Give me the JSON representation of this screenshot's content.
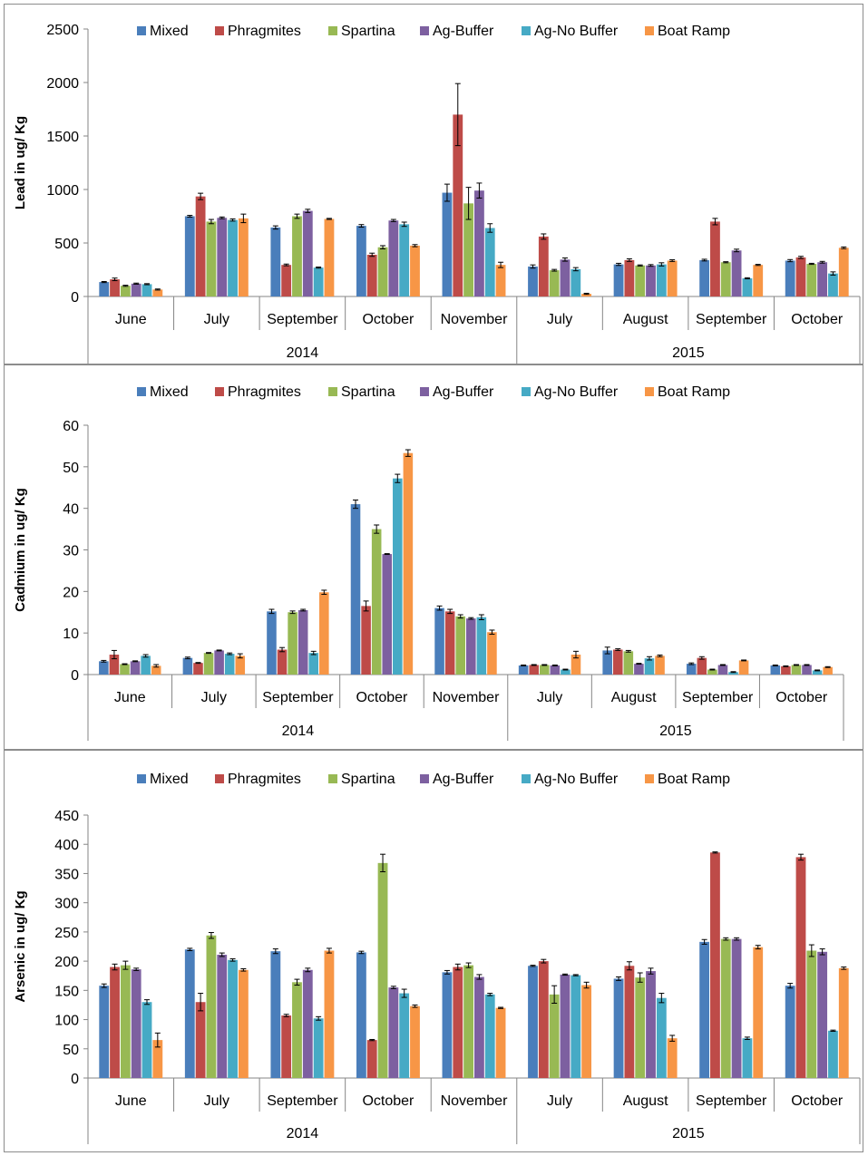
{
  "series_names": [
    "Mixed",
    "Phragmites",
    "Spartina",
    "Ag-Buffer",
    "Ag-No Buffer",
    "Boat Ramp"
  ],
  "series_colors": [
    "#4a7ebb",
    "#be4b48",
    "#98b954",
    "#7d60a0",
    "#46aac5",
    "#f79646"
  ],
  "chart_data": [
    {
      "type": "bar",
      "ylabel": "Lead in ug/ Kg",
      "ylim": [
        0,
        2500
      ],
      "yticks": [
        "0",
        "500",
        "1000",
        "1500",
        "2000",
        "2500"
      ],
      "legend_position": "top",
      "categories": [
        "June",
        "July",
        "September",
        "October",
        "November",
        "July",
        "August",
        "September",
        "October"
      ],
      "groups": [
        {
          "label": "2014",
          "count": 5
        },
        {
          "label": "2015",
          "count": 4
        }
      ],
      "series": [
        {
          "name": "Mixed",
          "values": [
            135,
            750,
            645,
            660,
            970,
            280,
            300,
            340,
            335
          ],
          "errors": [
            5,
            8,
            15,
            12,
            80,
            15,
            10,
            8,
            10
          ]
        },
        {
          "name": "Phragmites",
          "values": [
            160,
            935,
            295,
            390,
            1700,
            560,
            340,
            700,
            365
          ],
          "errors": [
            12,
            30,
            8,
            15,
            290,
            25,
            12,
            30,
            10
          ]
        },
        {
          "name": "Spartina",
          "values": [
            100,
            700,
            750,
            460,
            870,
            245,
            290,
            320,
            305
          ],
          "errors": [
            5,
            20,
            20,
            15,
            150,
            8,
            5,
            5,
            5
          ]
        },
        {
          "name": "Ag-Buffer",
          "values": [
            120,
            735,
            800,
            710,
            990,
            345,
            290,
            430,
            320
          ],
          "errors": [
            5,
            8,
            15,
            10,
            70,
            15,
            8,
            12,
            8
          ]
        },
        {
          "name": "Ag-No Buffer",
          "values": [
            115,
            715,
            270,
            675,
            640,
            255,
            300,
            170,
            215
          ],
          "errors": [
            5,
            10,
            5,
            20,
            40,
            15,
            15,
            5,
            15
          ]
        },
        {
          "name": "Boat Ramp",
          "values": [
            65,
            730,
            725,
            475,
            295,
            25,
            335,
            295,
            455
          ],
          "errors": [
            5,
            40,
            5,
            10,
            25,
            5,
            8,
            5,
            8
          ]
        }
      ]
    },
    {
      "type": "bar",
      "ylabel": "Cadmium in ug/ Kg",
      "ylim": [
        0,
        60
      ],
      "yticks": [
        "0",
        "10",
        "20",
        "30",
        "40",
        "50",
        "60"
      ],
      "legend_position": "top",
      "categories": [
        "June",
        "July",
        "September",
        "October",
        "November",
        "July",
        "August",
        "September",
        "October"
      ],
      "groups": [
        {
          "label": "2014",
          "count": 5
        },
        {
          "label": "2015",
          "count": 4
        }
      ],
      "series": [
        {
          "name": "Mixed",
          "values": [
            3.2,
            4.0,
            15.2,
            41.0,
            16.0,
            2.2,
            5.8,
            2.6,
            2.2
          ],
          "errors": [
            0.2,
            0.2,
            0.5,
            1.0,
            0.5,
            0.1,
            0.8,
            0.2,
            0.1
          ]
        },
        {
          "name": "Phragmites",
          "values": [
            4.8,
            2.8,
            6.0,
            16.5,
            15.2,
            2.3,
            6.0,
            4.0,
            2.0
          ],
          "errors": [
            1.0,
            0.1,
            0.5,
            1.2,
            0.5,
            0.1,
            0.2,
            0.3,
            0.1
          ]
        },
        {
          "name": "Spartina",
          "values": [
            2.5,
            5.2,
            15.0,
            35.0,
            14.0,
            2.3,
            5.6,
            1.2,
            2.3
          ],
          "errors": [
            0.1,
            0.1,
            0.3,
            1.0,
            0.4,
            0.1,
            0.2,
            0.1,
            0.1
          ]
        },
        {
          "name": "Ag-Buffer",
          "values": [
            3.2,
            5.8,
            15.5,
            29.0,
            13.5,
            2.2,
            2.6,
            2.3,
            2.3
          ],
          "errors": [
            0.1,
            0.1,
            0.2,
            0.1,
            0.2,
            0.1,
            0.1,
            0.1,
            0.1
          ]
        },
        {
          "name": "Ag-No Buffer",
          "values": [
            4.5,
            5.0,
            5.2,
            47.2,
            13.8,
            1.2,
            3.9,
            0.6,
            1.0
          ],
          "errors": [
            0.3,
            0.2,
            0.4,
            1.0,
            0.6,
            0.1,
            0.4,
            0.1,
            0.1
          ]
        },
        {
          "name": "Boat Ramp",
          "values": [
            2.1,
            4.5,
            19.8,
            53.3,
            10.2,
            4.8,
            4.5,
            3.4,
            1.8
          ],
          "errors": [
            0.3,
            0.5,
            0.5,
            0.8,
            0.5,
            0.8,
            0.2,
            0.1,
            0.1
          ]
        }
      ]
    },
    {
      "type": "bar",
      "ylabel": "Arsenic in ug/ Kg",
      "ylim": [
        0,
        450
      ],
      "yticks": [
        "0",
        "50",
        "100",
        "150",
        "200",
        "250",
        "300",
        "350",
        "400",
        "450"
      ],
      "legend_position": "top",
      "categories": [
        "June",
        "July",
        "September",
        "October",
        "November",
        "July",
        "August",
        "September",
        "October"
      ],
      "groups": [
        {
          "label": "2014",
          "count": 5
        },
        {
          "label": "2015",
          "count": 4
        }
      ],
      "series": [
        {
          "name": "Mixed",
          "values": [
            158,
            220,
            217,
            215,
            181,
            192,
            170,
            233,
            158
          ],
          "errors": [
            3,
            2,
            4,
            2,
            3,
            1,
            3,
            4,
            4
          ]
        },
        {
          "name": "Phragmites",
          "values": [
            190,
            130,
            107,
            65,
            190,
            200,
            192,
            386,
            378
          ],
          "errors": [
            5,
            15,
            2,
            1,
            5,
            3,
            7,
            1,
            5
          ]
        },
        {
          "name": "Spartina",
          "values": [
            193,
            244,
            164,
            368,
            193,
            143,
            172,
            238,
            218
          ],
          "errors": [
            7,
            5,
            5,
            15,
            4,
            15,
            8,
            2,
            10
          ]
        },
        {
          "name": "Ag-Buffer",
          "values": [
            186,
            211,
            185,
            155,
            173,
            177,
            183,
            238,
            216
          ],
          "errors": [
            2,
            3,
            3,
            2,
            4,
            1,
            5,
            2,
            5
          ]
        },
        {
          "name": "Ag-No Buffer",
          "values": [
            130,
            202,
            102,
            145,
            143,
            176,
            137,
            68,
            81
          ],
          "errors": [
            4,
            2,
            3,
            7,
            2,
            1,
            8,
            2,
            1
          ]
        },
        {
          "name": "Boat Ramp",
          "values": [
            65,
            185,
            218,
            123,
            120,
            159,
            68,
            224,
            188
          ],
          "errors": [
            12,
            2,
            4,
            2,
            1,
            5,
            5,
            3,
            2
          ]
        }
      ]
    }
  ]
}
